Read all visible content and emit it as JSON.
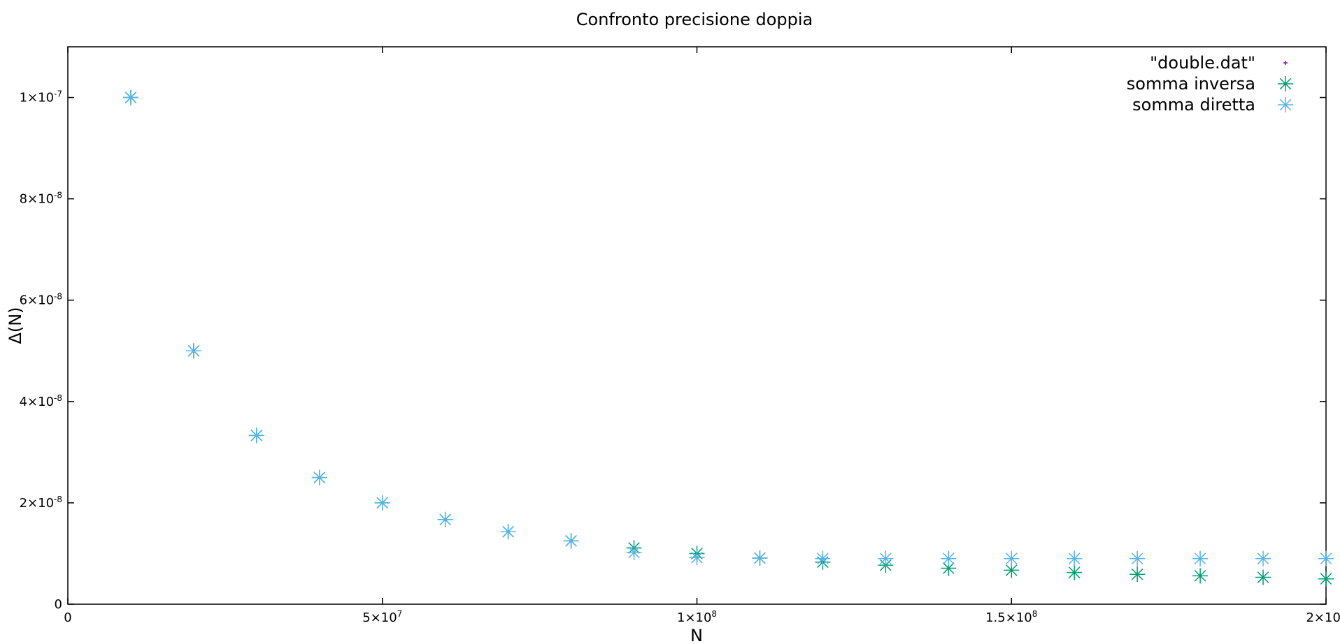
{
  "chart_data": {
    "type": "scatter",
    "title": "Confronto precisione doppia",
    "xlabel": "N",
    "ylabel": "Δ(N)",
    "xlim": [
      0,
      200000000
    ],
    "ylim": [
      0,
      1.1e-07
    ],
    "grid": false,
    "legend_position": "top-right",
    "x_ticks": [
      {
        "value": 0,
        "label": "0"
      },
      {
        "value": 50000000,
        "label": "5×10",
        "exp": "7"
      },
      {
        "value": 100000000,
        "label": "1×10",
        "exp": "8"
      },
      {
        "value": 150000000,
        "label": "1.5×10",
        "exp": "8"
      },
      {
        "value": 200000000,
        "label": "2×10",
        "exp": "8"
      }
    ],
    "y_ticks": [
      {
        "value": 0,
        "label": "0"
      },
      {
        "value": 2e-08,
        "label": "2×10",
        "exp": "-8"
      },
      {
        "value": 4e-08,
        "label": "4×10",
        "exp": "-8"
      },
      {
        "value": 6e-08,
        "label": "6×10",
        "exp": "-8"
      },
      {
        "value": 8e-08,
        "label": "8×10",
        "exp": "-8"
      },
      {
        "value": 1e-07,
        "label": "1×10",
        "exp": "-7"
      }
    ],
    "series": [
      {
        "name": "\"double.dat\"",
        "color": "#9400d3",
        "marker": "plus",
        "points": []
      },
      {
        "name": "somma inversa",
        "color": "#009e73",
        "marker": "star",
        "points": [
          [
            10000000,
            1e-07
          ],
          [
            20000000,
            5e-08
          ],
          [
            30000000,
            3.33e-08
          ],
          [
            40000000,
            2.5e-08
          ],
          [
            50000000,
            2e-08
          ],
          [
            60000000,
            1.67e-08
          ],
          [
            70000000,
            1.43e-08
          ],
          [
            80000000,
            1.25e-08
          ],
          [
            90000000,
            1.11e-08
          ],
          [
            100000000,
            1e-08
          ],
          [
            110000000,
            9.1e-09
          ],
          [
            120000000,
            8.3e-09
          ],
          [
            130000000,
            7.7e-09
          ],
          [
            140000000,
            7.1e-09
          ],
          [
            150000000,
            6.7e-09
          ],
          [
            160000000,
            6.25e-09
          ],
          [
            170000000,
            5.9e-09
          ],
          [
            180000000,
            5.6e-09
          ],
          [
            190000000,
            5.3e-09
          ],
          [
            200000000,
            5e-09
          ]
        ]
      },
      {
        "name": "somma diretta",
        "color": "#56b4e9",
        "marker": "star",
        "points": [
          [
            10000000,
            1e-07
          ],
          [
            20000000,
            5e-08
          ],
          [
            30000000,
            3.33e-08
          ],
          [
            40000000,
            2.5e-08
          ],
          [
            50000000,
            2e-08
          ],
          [
            60000000,
            1.67e-08
          ],
          [
            70000000,
            1.43e-08
          ],
          [
            80000000,
            1.25e-08
          ],
          [
            90000000,
            1.02e-08
          ],
          [
            100000000,
            9.2e-09
          ],
          [
            110000000,
            9.1e-09
          ],
          [
            120000000,
            9e-09
          ],
          [
            130000000,
            9e-09
          ],
          [
            140000000,
            9e-09
          ],
          [
            150000000,
            9e-09
          ],
          [
            160000000,
            9e-09
          ],
          [
            170000000,
            9e-09
          ],
          [
            180000000,
            9e-09
          ],
          [
            190000000,
            9e-09
          ],
          [
            200000000,
            9e-09
          ]
        ]
      }
    ]
  }
}
